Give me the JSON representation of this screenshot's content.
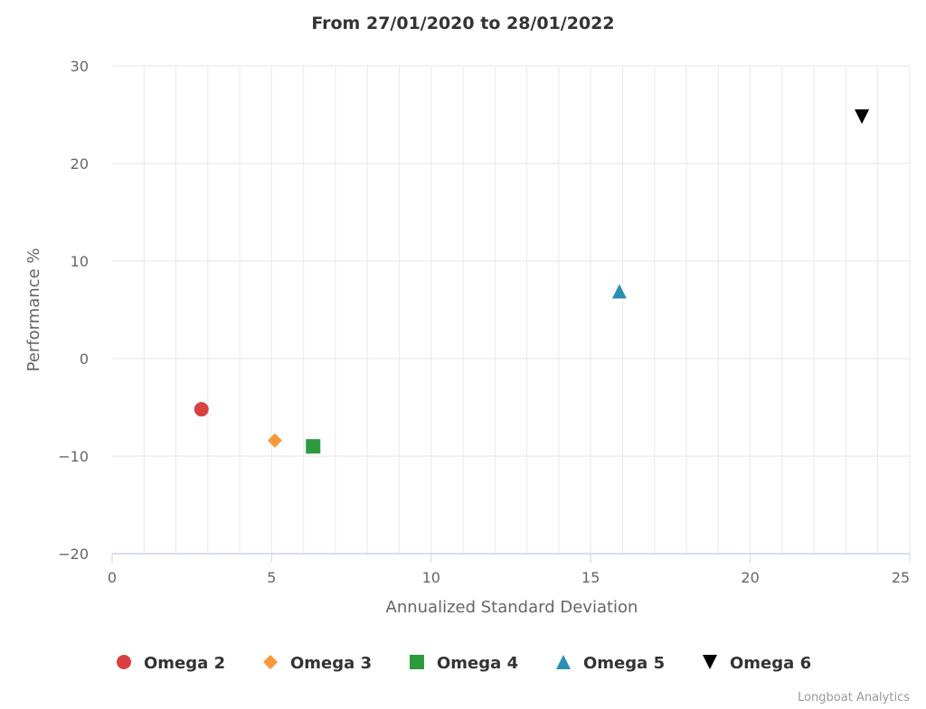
{
  "chart_data": {
    "type": "scatter",
    "title": "From 27/01/2020 to 28/01/2022",
    "xlabel": "Annualized Standard Deviation",
    "ylabel": "Performance %",
    "xlim": [
      0,
      25
    ],
    "ylim": [
      -20,
      30
    ],
    "x_ticks": [
      0,
      5,
      10,
      15,
      20,
      25
    ],
    "y_ticks": [
      -20,
      -10,
      0,
      10,
      20,
      30
    ],
    "x_tick_labels": [
      "0",
      "5",
      "10",
      "15",
      "20",
      "25"
    ],
    "y_tick_labels": [
      "−20",
      "−10",
      "0",
      "10",
      "20",
      "30"
    ],
    "grid": true,
    "legend_position": "bottom",
    "series": [
      {
        "name": "Omega 2",
        "x": [
          2.8
        ],
        "y": [
          -5.2
        ],
        "marker": "circle",
        "color": "#d94040"
      },
      {
        "name": "Omega 3",
        "x": [
          5.1
        ],
        "y": [
          -8.4
        ],
        "marker": "diamond",
        "color": "#f7993b"
      },
      {
        "name": "Omega 4",
        "x": [
          6.3
        ],
        "y": [
          -9.0
        ],
        "marker": "square",
        "color": "#2e9a3e"
      },
      {
        "name": "Omega 5",
        "x": [
          15.9
        ],
        "y": [
          6.9
        ],
        "marker": "triangle",
        "color": "#2b8fb3"
      },
      {
        "name": "Omega 6",
        "x": [
          23.5
        ],
        "y": [
          24.8
        ],
        "marker": "triangle-down",
        "color": "#000000"
      }
    ]
  },
  "credits": "Longboat Analytics"
}
